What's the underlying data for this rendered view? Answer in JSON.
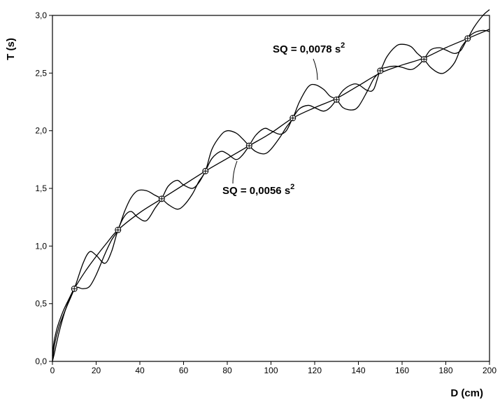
{
  "chart_data": {
    "type": "line",
    "title": "",
    "xlabel": "D (cm)",
    "ylabel": "T (s)",
    "xlim": [
      0,
      200
    ],
    "ylim": [
      0,
      3.0
    ],
    "x_ticks": [
      "0",
      "20",
      "40",
      "60",
      "80",
      "100",
      "120",
      "140",
      "160",
      "180",
      "200"
    ],
    "y_ticks": [
      "0,0",
      "0,5",
      "1,0",
      "1,5",
      "2,0",
      "2,5",
      "3,0"
    ],
    "grid": false,
    "legend": "none",
    "points": {
      "x": [
        10,
        30,
        50,
        70,
        90,
        110,
        130,
        150,
        170,
        190
      ],
      "y": [
        0.63,
        1.14,
        1.41,
        1.65,
        1.87,
        2.11,
        2.27,
        2.52,
        2.62,
        2.8
      ]
    },
    "series": [
      {
        "x": [
          0,
          0.5,
          1,
          2,
          3,
          5,
          7,
          10,
          15,
          20,
          25,
          30,
          40,
          50,
          60,
          70,
          80,
          90,
          100,
          110,
          120,
          130,
          140,
          150,
          160,
          170,
          180,
          190,
          200
        ],
        "y": [
          0.05,
          0.14,
          0.2,
          0.28,
          0.34,
          0.44,
          0.52,
          0.63,
          0.78,
          0.91,
          1.03,
          1.14,
          1.29,
          1.41,
          1.53,
          1.65,
          1.76,
          1.87,
          1.98,
          2.11,
          2.2,
          2.28,
          2.39,
          2.5,
          2.57,
          2.63,
          2.72,
          2.8,
          2.88
        ]
      },
      {
        "x": [
          0,
          1,
          3,
          6,
          10,
          14,
          17,
          20,
          24,
          27,
          30,
          33,
          36,
          39,
          43,
          47,
          50,
          53,
          57,
          60,
          64,
          67,
          70,
          73,
          77,
          80,
          84,
          87,
          90,
          93,
          97,
          100,
          104,
          107,
          110,
          113,
          117,
          120,
          124,
          127,
          130,
          133,
          137,
          140,
          144,
          147,
          150,
          153,
          157,
          160,
          164,
          167,
          170,
          173,
          177,
          180,
          184,
          187,
          190,
          193,
          197,
          200
        ],
        "y": [
          0.0,
          0.15,
          0.3,
          0.45,
          0.63,
          0.85,
          0.95,
          0.92,
          0.85,
          0.95,
          1.14,
          1.26,
          1.3,
          1.25,
          1.22,
          1.33,
          1.41,
          1.52,
          1.57,
          1.53,
          1.5,
          1.55,
          1.65,
          1.76,
          1.82,
          1.8,
          1.75,
          1.79,
          1.87,
          1.96,
          2.02,
          2.0,
          1.97,
          2.0,
          2.11,
          2.19,
          2.22,
          2.2,
          2.17,
          2.2,
          2.27,
          2.35,
          2.4,
          2.4,
          2.35,
          2.36,
          2.52,
          2.55,
          2.56,
          2.55,
          2.53,
          2.56,
          2.62,
          2.7,
          2.72,
          2.7,
          2.67,
          2.7,
          2.8,
          2.85,
          2.87,
          2.86
        ]
      },
      {
        "x": [
          0,
          1,
          3,
          6,
          10,
          14,
          17,
          20,
          24,
          27,
          30,
          33,
          36,
          39,
          43,
          47,
          50,
          53,
          57,
          60,
          64,
          67,
          70,
          73,
          77,
          80,
          84,
          87,
          90,
          93,
          97,
          100,
          104,
          107,
          110,
          113,
          117,
          120,
          124,
          127,
          130,
          133,
          137,
          140,
          144,
          147,
          150,
          153,
          157,
          160,
          164,
          167,
          170,
          173,
          177,
          180,
          184,
          187,
          190,
          193,
          197,
          200
        ],
        "y": [
          0.0,
          0.08,
          0.25,
          0.45,
          0.63,
          0.63,
          0.65,
          0.75,
          0.93,
          1.05,
          1.14,
          1.3,
          1.42,
          1.48,
          1.48,
          1.44,
          1.41,
          1.36,
          1.32,
          1.35,
          1.45,
          1.56,
          1.65,
          1.84,
          1.96,
          2.0,
          1.98,
          1.93,
          1.87,
          1.82,
          1.8,
          1.84,
          1.94,
          2.03,
          2.11,
          2.25,
          2.38,
          2.4,
          2.36,
          2.3,
          2.27,
          2.2,
          2.18,
          2.21,
          2.34,
          2.45,
          2.52,
          2.64,
          2.73,
          2.75,
          2.73,
          2.67,
          2.62,
          2.55,
          2.5,
          2.51,
          2.59,
          2.72,
          2.8,
          2.9,
          3.0,
          3.05
        ]
      }
    ],
    "annotations": [
      {
        "text": "SQ = 0,0078 s",
        "sup": "2",
        "arrow_to": [
          121,
          2.42
        ]
      },
      {
        "text": "SQ = 0,0056 s",
        "sup": "2",
        "arrow_to": [
          83,
          1.8
        ]
      }
    ]
  }
}
